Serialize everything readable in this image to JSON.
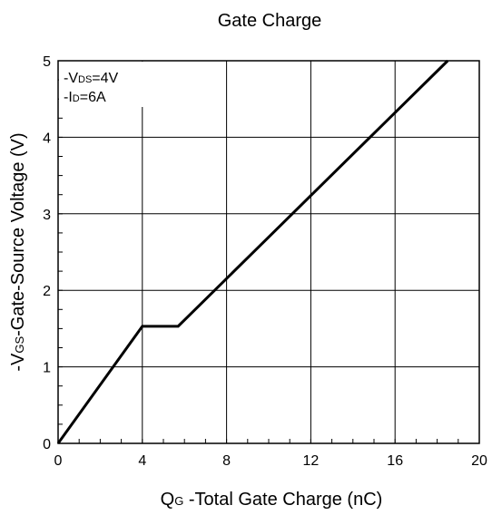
{
  "chart_data": {
    "type": "line",
    "title": "Gate Charge",
    "xlabel": {
      "main": "Q",
      "sub": "G",
      "rest": " -Total Gate Charge (nC)"
    },
    "ylabel": {
      "prefix": "-V",
      "sub": "GS",
      "rest": "-Gate-Source Voltage (V)"
    },
    "xlim": [
      0,
      20
    ],
    "ylim": [
      0,
      5
    ],
    "xticks": [
      "0",
      "4",
      "8",
      "12",
      "16",
      "20"
    ],
    "yticks": [
      "0",
      "1",
      "2",
      "3",
      "4",
      "5"
    ],
    "grid": true,
    "annotations": [
      {
        "prefix": "-V",
        "sub": "DS",
        "rest": "=4V"
      },
      {
        "prefix": "-I",
        "sub": "D",
        "rest": "=6A"
      }
    ],
    "series": [
      {
        "x": [
          0,
          4.0,
          5.7,
          18.5
        ],
        "y": [
          0,
          1.53,
          1.53,
          5.0
        ]
      }
    ]
  }
}
